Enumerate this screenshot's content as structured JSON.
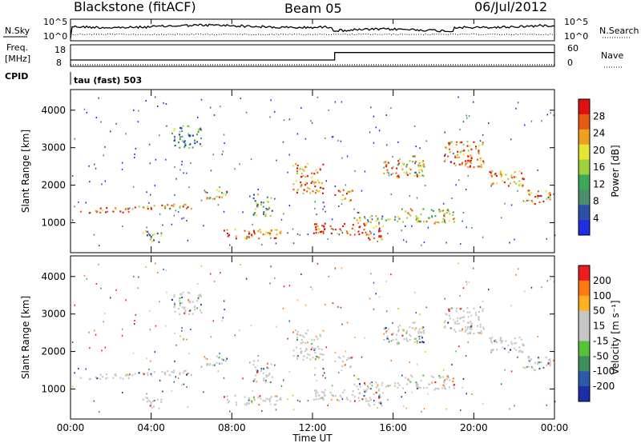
{
  "header": {
    "station": "Blackstone (fitACF)",
    "beam": "Beam 05",
    "date": "06/Jul/2012"
  },
  "mode_label": "tau (fast) 503",
  "colors": {
    "power_scale": [
      "#1f2ee0",
      "#2c4fa8",
      "#4b8e6d",
      "#3da85a",
      "#9fd13d",
      "#e6e632",
      "#f0a020",
      "#e35a10",
      "#e01010"
    ],
    "velocity_scale": [
      "#1a2fa8",
      "#2d5aa8",
      "#3e8f5e",
      "#55c23a",
      "#c6c6c6",
      "#c6c6c6",
      "#ffb020",
      "#ff7a10",
      "#ee1d1d"
    ],
    "gray_scatter": "#c6c6c6"
  },
  "chart_data": [
    {
      "type": "line",
      "panel": "noise",
      "labels_left": [
        "N.Sky",
        "10^5",
        "10^0"
      ],
      "labels_right": [
        "10^5",
        "10^0",
        "N.Search"
      ],
      "series": [
        {
          "name": "N.Sky",
          "style": "solid"
        },
        {
          "name": "N.Search",
          "style": "dotted"
        }
      ],
      "ylim": [
        1,
        100000
      ],
      "y_scale": "log"
    },
    {
      "type": "line",
      "panel": "frequency",
      "labels_left": [
        "Freq.",
        "[MHz]",
        "18",
        "8",
        "CPID"
      ],
      "labels_right": [
        "60",
        "0",
        "Nave"
      ],
      "series": [
        {
          "name": "Freq.",
          "style": "solid",
          "x": [
            0,
            13.1,
            13.1,
            24
          ],
          "values": [
            10.3,
            10.3,
            13.9,
            13.9
          ]
        },
        {
          "name": "Nave",
          "style": "dotted",
          "x": [
            0,
            24
          ],
          "values": [
            8,
            8
          ]
        }
      ],
      "ylim": [
        8,
        18
      ]
    },
    {
      "type": "heatmap",
      "panel": "power",
      "ylabel": "Slant Range [km]",
      "yticks": [
        "1000",
        "2000",
        "3000",
        "4000"
      ],
      "ylim": [
        200,
        4550
      ],
      "colorbar_label": "Power [dB]",
      "colorbar_ticks": [
        "28",
        "24",
        "20",
        "16",
        "12",
        "8",
        "4"
      ]
    },
    {
      "type": "heatmap",
      "panel": "velocity",
      "ylabel": "Slant Range [km]",
      "yticks": [
        "1000",
        "2000",
        "3000",
        "4000"
      ],
      "ylim": [
        200,
        4550
      ],
      "colorbar_label": "Velocity [m s⁻¹]",
      "colorbar_ticks": [
        "200",
        "100",
        "50",
        "15",
        "-15",
        "-50",
        "-100",
        "-200"
      ]
    }
  ],
  "axes": {
    "xlabel": "Time UT",
    "xticks": [
      "00:00",
      "04:00",
      "08:00",
      "12:00",
      "16:00",
      "20:00",
      "00:00"
    ],
    "xlim": [
      0,
      24
    ]
  },
  "structures": [
    {
      "t0": 0.3,
      "t1": 3.0,
      "r0": 1280,
      "r1": 1420,
      "p": 0.8
    },
    {
      "t0": 3.0,
      "t1": 6.5,
      "r0": 1380,
      "r1": 1520,
      "p": 0.75
    },
    {
      "t0": 6.5,
      "t1": 7.8,
      "r0": 1650,
      "r1": 1900,
      "p": 0.7
    },
    {
      "t0": 3.5,
      "t1": 4.5,
      "r0": 500,
      "r1": 800,
      "p": 0.4
    },
    {
      "t0": 7.5,
      "t1": 10.5,
      "r0": 600,
      "r1": 850,
      "p": 0.85
    },
    {
      "t0": 9.0,
      "t1": 10.0,
      "r0": 1200,
      "r1": 1800,
      "p": 0.4
    },
    {
      "t0": 11.0,
      "t1": 12.5,
      "r0": 1800,
      "r1": 2600,
      "p": 0.75
    },
    {
      "t0": 12.0,
      "t1": 15.5,
      "r0": 700,
      "r1": 1000,
      "p": 0.9
    },
    {
      "t0": 13.0,
      "t1": 14.0,
      "r0": 1600,
      "r1": 1900,
      "p": 0.7
    },
    {
      "t0": 14.0,
      "t1": 16.5,
      "r0": 1000,
      "r1": 1200,
      "p": 0.5
    },
    {
      "t0": 14.5,
      "t1": 15.5,
      "r0": 550,
      "r1": 800,
      "p": 0.95
    },
    {
      "t0": 15.5,
      "t1": 17.5,
      "r0": 2200,
      "r1": 2800,
      "p": 0.65
    },
    {
      "t0": 16.5,
      "t1": 19.0,
      "r0": 1000,
      "r1": 1400,
      "p": 0.55
    },
    {
      "t0": 18.5,
      "t1": 20.5,
      "r0": 2500,
      "r1": 3200,
      "p": 0.75
    },
    {
      "t0": 20.5,
      "t1": 22.5,
      "r0": 2000,
      "r1": 2400,
      "p": 0.75
    },
    {
      "t0": 22.5,
      "t1": 23.8,
      "r0": 1500,
      "r1": 1900,
      "p": 0.8
    },
    {
      "t0": 5.0,
      "t1": 6.5,
      "r0": 3000,
      "r1": 3600,
      "p": 0.3
    }
  ]
}
